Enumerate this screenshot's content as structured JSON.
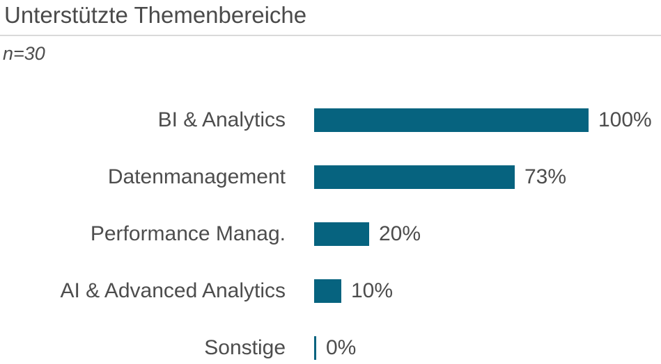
{
  "header": {
    "title": "Unterstützte Themenbereiche",
    "subtitle": "n=30"
  },
  "chart_data": {
    "type": "bar",
    "orientation": "horizontal",
    "title": "Unterstützte Themenbereiche",
    "subtitle": "n=30",
    "categories": [
      "BI & Analytics",
      "Datenmanagement",
      "Performance Manag.",
      "AI & Advanced Analytics",
      "Sonstige"
    ],
    "values": [
      100,
      73,
      20,
      10,
      0
    ],
    "value_labels": [
      "100%",
      "73%",
      "20%",
      "10%",
      "0%"
    ],
    "unit": "%",
    "xlim": [
      0,
      100
    ],
    "grid": false,
    "legend": false,
    "bar_color": "#06637F",
    "text_color": "#4D4D4D",
    "divider_color": "#D9D9D9",
    "background_color": "#FFFFFF"
  }
}
